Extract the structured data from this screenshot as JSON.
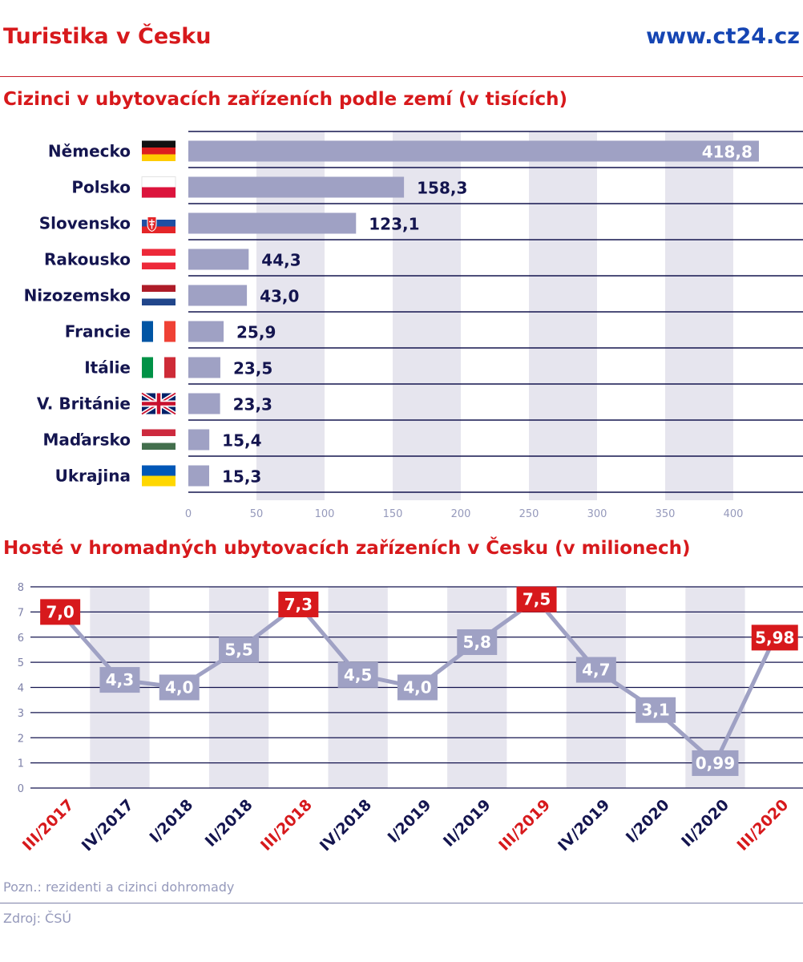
{
  "header": {
    "title": "Turistika v Česku",
    "site": "www.ct24.cz"
  },
  "colors": {
    "accent_red": "#d7191c",
    "navy": "#14154f",
    "bar": "#9fa1c4",
    "stripe": "#e6e5ee",
    "link_blue": "#1545b3"
  },
  "chart_data": [
    {
      "type": "bar",
      "orientation": "horizontal",
      "title": "Cizinci v ubytovacích zařízeních podle zemí (v tisících)",
      "categories": [
        "Německo",
        "Polsko",
        "Slovensko",
        "Rakousko",
        "Nizozemsko",
        "Francie",
        "Itálie",
        "V. Británie",
        "Maďarsko",
        "Ukrajina"
      ],
      "values": [
        418.8,
        158.3,
        123.1,
        44.3,
        43.0,
        25.9,
        23.5,
        23.3,
        15.4,
        15.3
      ],
      "value_labels": [
        "418,8",
        "158,3",
        "123,1",
        "44,3",
        "43,0",
        "25,9",
        "23,5",
        "23,3",
        "15,4",
        "15,3"
      ],
      "flags": [
        "flag-germany-icon",
        "flag-poland-icon",
        "flag-slovakia-icon",
        "flag-austria-icon",
        "flag-netherlands-icon",
        "flag-france-icon",
        "flag-italy-icon",
        "flag-uk-icon",
        "flag-hungary-icon",
        "flag-ukraine-icon"
      ],
      "xticks": [
        "0",
        "50",
        "100",
        "150",
        "200",
        "250",
        "300",
        "350",
        "400"
      ],
      "xlim": [
        0,
        450
      ],
      "grid": "alternating vertical stripes"
    },
    {
      "type": "line",
      "title": "Hosté v hromadných ubytovacích zařízeních v Česku (v milionech)",
      "x": [
        "III/2017",
        "IV/2017",
        "I/2018",
        "II/2018",
        "III/2018",
        "IV/2018",
        "I/2019",
        "II/2019",
        "III/2019",
        "IV/2019",
        "I/2020",
        "II/2020",
        "III/2020"
      ],
      "values": [
        7.0,
        4.3,
        4.0,
        5.5,
        7.3,
        4.5,
        4.0,
        5.8,
        7.5,
        4.7,
        3.1,
        0.99,
        5.98
      ],
      "value_labels": [
        "7,0",
        "4,3",
        "4,0",
        "5,5",
        "7,3",
        "4,5",
        "4,0",
        "5,8",
        "7,5",
        "4,7",
        "3,1",
        "0,99",
        "5,98"
      ],
      "highlighted": [
        "III/2017",
        "III/2018",
        "III/2019",
        "III/2020"
      ],
      "yticks": [
        "0",
        "1",
        "2",
        "3",
        "4",
        "5",
        "6",
        "7",
        "8"
      ],
      "ylim": [
        0,
        8
      ],
      "grid": "horizontal lines"
    }
  ],
  "footer": {
    "note": "Pozn.: rezidenti a cizinci dohromady",
    "source": "Zdroj: ČSÚ"
  }
}
